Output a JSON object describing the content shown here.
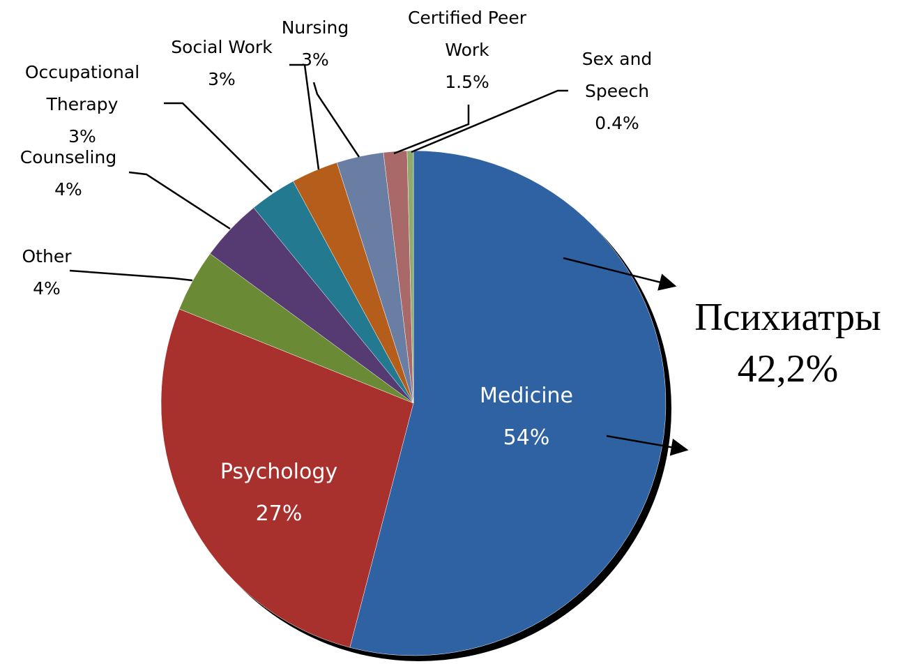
{
  "chart_data": {
    "type": "pie",
    "categories": [
      "Medicine",
      "Psychology",
      "Other",
      "Counseling",
      "Occupational Therapy",
      "Social Work",
      "Nursing",
      "Certified Peer Work",
      "Sex and Speech"
    ],
    "values": [
      54,
      27,
      4,
      4,
      3,
      3,
      3,
      1.5,
      0.4
    ],
    "value_labels": [
      "54%",
      "27%",
      "4%",
      "4%",
      "3%",
      "3%",
      "3%",
      "1.5%",
      "0.4%"
    ],
    "colors": [
      "#2f62a3",
      "#a8302d",
      "#6b8a35",
      "#553b72",
      "#237a90",
      "#b55e1b",
      "#6a7ea4",
      "#aa6969",
      "#91a96c"
    ],
    "annotations": [
      "Психиатры",
      "42,2%"
    ]
  }
}
